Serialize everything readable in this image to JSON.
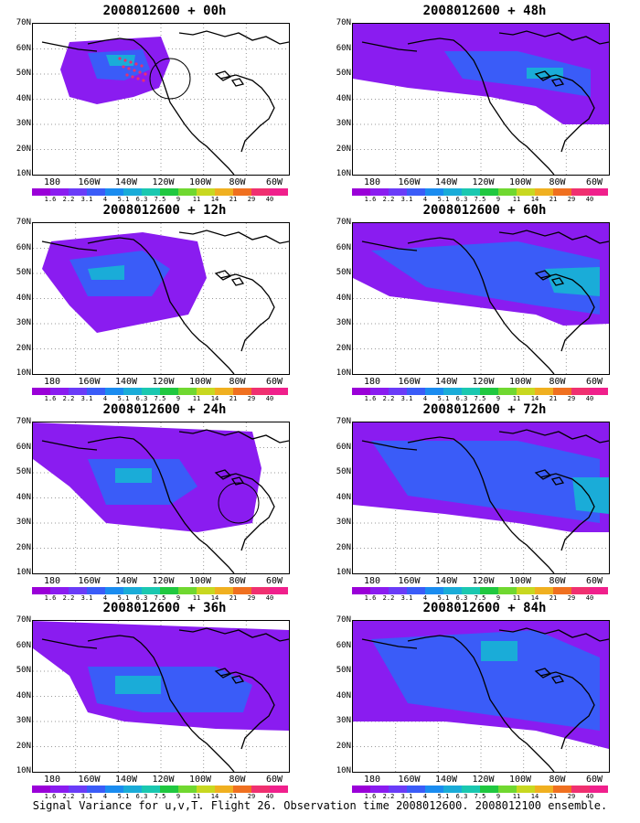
{
  "panels": [
    {
      "title": "2008012600 + 00h"
    },
    {
      "title": "2008012600 + 48h"
    },
    {
      "title": "2008012600 + 12h"
    },
    {
      "title": "2008012600 + 60h"
    },
    {
      "title": "2008012600 + 24h"
    },
    {
      "title": "2008012600 + 72h"
    },
    {
      "title": "2008012600 + 36h"
    },
    {
      "title": "2008012600 + 84h"
    }
  ],
  "y_ticks": [
    "70N",
    "60N",
    "50N",
    "40N",
    "30N",
    "20N",
    "10N"
  ],
  "x_ticks": [
    "180",
    "160W",
    "140W",
    "120W",
    "100W",
    "80W",
    "60W"
  ],
  "colorbar": {
    "labels": [
      "1.6",
      "2.2",
      "3.1",
      "4",
      "5.1",
      "6.3",
      "7.5",
      "9",
      "11",
      "14",
      "21",
      "29",
      "40"
    ],
    "colors": [
      "#9a00d8",
      "#8a1cf0",
      "#6a3cf8",
      "#3a5cf8",
      "#1a8cf0",
      "#1aacd8",
      "#1ac8b0",
      "#20c840",
      "#70d830",
      "#c8d820",
      "#f0b020",
      "#f07020",
      "#f03070",
      "#f0208c"
    ]
  },
  "caption": "Signal Variance for u,v,T. Flight 26. Observation time 2008012600. 2008012100 ensemble."
}
